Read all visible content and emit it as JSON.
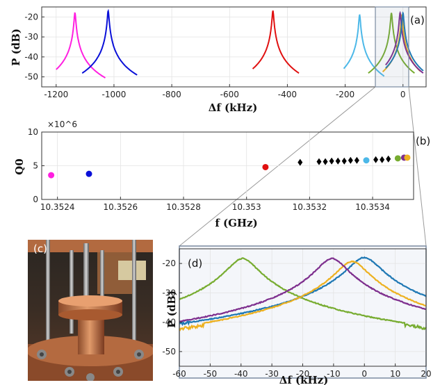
{
  "panels": {
    "a": "(a)",
    "b": "(b)",
    "c": "(c)",
    "d": "(d)"
  },
  "colors": {
    "magenta": "#ff1fe0",
    "blue": "#0a10d8",
    "red": "#e01010",
    "cyan": "#4cb8e8",
    "green": "#77ac30",
    "orange": "#edb120",
    "purple": "#7e2f8e",
    "steelblue": "#1f78b4",
    "black": "#000000"
  },
  "chart_data": [
    {
      "type": "line",
      "panel": "(a)",
      "xlabel": "Δf (kHz)",
      "ylabel": "P (dB)",
      "xlim": [
        -1250,
        80
      ],
      "ylim": [
        -55,
        -15
      ],
      "xticks": [
        "-1200",
        "-1000",
        "-800",
        "-600",
        "-400",
        "-200",
        "0"
      ],
      "xtick_values": [
        -1200,
        -1000,
        -800,
        -600,
        -400,
        -200,
        0
      ],
      "yticks": [
        "-20",
        "-30",
        "-40",
        "-50"
      ],
      "ytick_values": [
        -20,
        -30,
        -40,
        -50
      ],
      "grid": true,
      "series": [
        {
          "color": "magenta",
          "center": -1135,
          "span": [
            -1200,
            -1030
          ],
          "width": 2.5,
          "peak": -18,
          "floor": -55
        },
        {
          "color": "blue",
          "center": -1020,
          "span": [
            -1110,
            -920
          ],
          "width": 2.5,
          "peak": -17,
          "floor": -55
        },
        {
          "color": "red",
          "center": -450,
          "span": [
            -520,
            -360
          ],
          "width": 2.5,
          "peak": -17,
          "floor": -55
        },
        {
          "color": "cyan",
          "center": -150,
          "span": [
            -205,
            -65
          ],
          "width": 2.5,
          "peak": -19,
          "floor": -55
        },
        {
          "color": "green",
          "center": -40,
          "span": [
            -120,
            40
          ],
          "width": 2.5,
          "peak": -18,
          "floor": -55
        },
        {
          "color": "orange",
          "center": -4,
          "span": [
            -70,
            60
          ],
          "width": 2.5,
          "peak": -19,
          "floor": -55
        },
        {
          "color": "purple",
          "center": -10,
          "span": [
            -60,
            70
          ],
          "width": 2.5,
          "peak": -18,
          "floor": -55
        },
        {
          "color": "steelblue",
          "center": 0,
          "span": [
            -60,
            70
          ],
          "width": 2.5,
          "peak": -18,
          "floor": -55
        }
      ]
    },
    {
      "type": "scatter",
      "panel": "(b)",
      "xlabel": "f (GHz)",
      "ylabel": "Q0",
      "multiplier": "×10^6",
      "xlim": [
        10.35235,
        10.35353
      ],
      "ylim": [
        0,
        10
      ],
      "xticks": [
        "10.3524",
        "10.3526",
        "10.3528",
        "10.353",
        "10.3532",
        "10.3534"
      ],
      "xtick_values": [
        10.3524,
        10.3526,
        10.3528,
        10.353,
        10.3532,
        10.3534
      ],
      "yticks": [
        "0",
        "5",
        "10"
      ],
      "ytick_values": [
        0,
        5,
        10
      ],
      "grid": true,
      "points": [
        {
          "x": 10.35238,
          "y": 3.6,
          "color": "magenta",
          "marker": "circle"
        },
        {
          "x": 10.3525,
          "y": 3.8,
          "color": "blue",
          "marker": "circle"
        },
        {
          "x": 10.35306,
          "y": 4.8,
          "color": "red",
          "marker": "circle"
        },
        {
          "x": 10.35317,
          "y": 5.5,
          "color": "black",
          "marker": "diamond"
        },
        {
          "x": 10.35323,
          "y": 5.6,
          "color": "black",
          "marker": "diamond"
        },
        {
          "x": 10.35325,
          "y": 5.6,
          "color": "black",
          "marker": "diamond"
        },
        {
          "x": 10.35327,
          "y": 5.7,
          "color": "black",
          "marker": "diamond"
        },
        {
          "x": 10.35329,
          "y": 5.7,
          "color": "black",
          "marker": "diamond"
        },
        {
          "x": 10.35331,
          "y": 5.7,
          "color": "black",
          "marker": "diamond"
        },
        {
          "x": 10.35333,
          "y": 5.8,
          "color": "black",
          "marker": "diamond"
        },
        {
          "x": 10.35335,
          "y": 5.8,
          "color": "black",
          "marker": "diamond"
        },
        {
          "x": 10.35338,
          "y": 5.8,
          "color": "cyan",
          "marker": "circle"
        },
        {
          "x": 10.35341,
          "y": 5.9,
          "color": "black",
          "marker": "diamond"
        },
        {
          "x": 10.35343,
          "y": 5.9,
          "color": "black",
          "marker": "diamond"
        },
        {
          "x": 10.35345,
          "y": 6.0,
          "color": "black",
          "marker": "diamond"
        },
        {
          "x": 10.35348,
          "y": 6.1,
          "color": "green",
          "marker": "circle"
        },
        {
          "x": 10.3535,
          "y": 6.2,
          "color": "purple",
          "marker": "circle"
        },
        {
          "x": 10.35351,
          "y": 6.2,
          "color": "orange",
          "marker": "circle"
        }
      ]
    },
    {
      "type": "line",
      "panel": "(d)",
      "xlabel": "Δf (kHz)",
      "ylabel": "P (dB)",
      "xlim": [
        -60,
        20
      ],
      "ylim": [
        -55,
        -15
      ],
      "xticks": [
        "-60",
        "-50",
        "-40",
        "-30",
        "-20",
        "-10",
        "0",
        "10",
        "20"
      ],
      "xtick_values": [
        -60,
        -50,
        -40,
        -30,
        -20,
        -10,
        0,
        10,
        20
      ],
      "yticks": [
        "-20",
        "-30",
        "-40",
        "-50"
      ],
      "ytick_values": [
        -20,
        -30,
        -40,
        -50
      ],
      "grid": true,
      "series": [
        {
          "color": "green",
          "center": -39.5,
          "width": 4.2,
          "peak": -18,
          "floor": -52
        },
        {
          "color": "steelblue",
          "center": 0,
          "width": 4.5,
          "peak": -18,
          "floor": -53.5
        },
        {
          "color": "orange",
          "center": -4,
          "width": 4.3,
          "peak": -19,
          "floor": -53.5
        },
        {
          "color": "purple",
          "center": -10.5,
          "width": 4.2,
          "peak": -18,
          "floor": -53
        }
      ]
    }
  ]
}
